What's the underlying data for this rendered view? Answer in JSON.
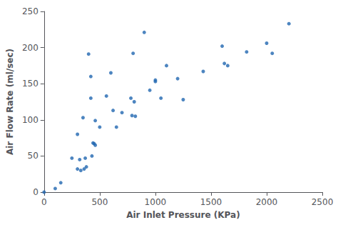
{
  "chart_data": {
    "type": "scatter",
    "x": [
      0,
      100,
      150,
      250,
      300,
      300,
      320,
      330,
      350,
      360,
      370,
      380,
      400,
      420,
      420,
      430,
      440,
      450,
      460,
      460,
      500,
      560,
      600,
      620,
      650,
      700,
      780,
      790,
      800,
      810,
      820,
      900,
      950,
      1000,
      1000,
      1050,
      1100,
      1200,
      1250,
      1430,
      1600,
      1620,
      1650,
      1820,
      2000,
      2050,
      2200
    ],
    "values": [
      0,
      5,
      13,
      47,
      80,
      32,
      45,
      30,
      103,
      32,
      47,
      35,
      191,
      160,
      130,
      50,
      68,
      67,
      99,
      65,
      90,
      133,
      165,
      113,
      90,
      110,
      130,
      106,
      192,
      125,
      105,
      221,
      141,
      155,
      153,
      130,
      175,
      157,
      128,
      167,
      202,
      178,
      175,
      194,
      206,
      192,
      233
    ],
    "xlabel": "Air Inlet Pressure (KPa)",
    "ylabel": "Air Flow Rate (ml/sec)",
    "xlim": [
      0,
      2500
    ],
    "ylim": [
      0,
      250
    ],
    "xticks": [
      0,
      500,
      1000,
      1500,
      2000,
      2500
    ],
    "yticks": [
      0,
      50,
      100,
      150,
      200,
      250
    ],
    "color": "#2166b0",
    "grid": false
  }
}
